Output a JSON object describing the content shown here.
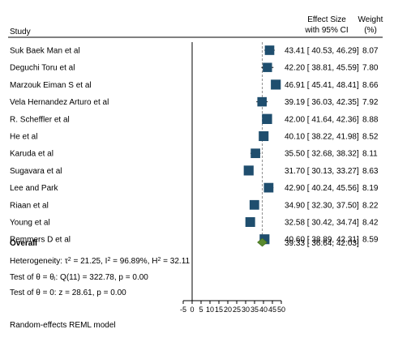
{
  "header": {
    "study": "Study",
    "effect_line1": "Effect Size",
    "effect_line2": "with 95% CI",
    "weight_line1": "Weight",
    "weight_line2": "(%)"
  },
  "colors": {
    "marker": "#1f4e6e",
    "overall": "#5a8a2e",
    "line": "#000000"
  },
  "chart_data": {
    "type": "forest",
    "xlim": [
      -5,
      50
    ],
    "ticks": [
      -5,
      0,
      5,
      10,
      15,
      20,
      25,
      30,
      35,
      40,
      45,
      50
    ],
    "null_line": 0,
    "studies": [
      {
        "name": "Suk Baek Man et al",
        "es": 43.41,
        "lo": 40.53,
        "hi": 46.29,
        "weight": 8.07,
        "label": "43.41 [ 40.53, 46.29]",
        "weight_label": "8.07"
      },
      {
        "name": "Deguchi Toru et al",
        "es": 42.2,
        "lo": 38.81,
        "hi": 45.59,
        "weight": 7.8,
        "label": "42.20 [ 38.81, 45.59]",
        "weight_label": "7.80"
      },
      {
        "name": "Marzouk  Eiman S et al",
        "es": 46.91,
        "lo": 45.41,
        "hi": 48.41,
        "weight": 8.66,
        "label": "46.91 [ 45.41, 48.41]",
        "weight_label": "8.66"
      },
      {
        "name": "Vela Hernandez Arturo et al",
        "es": 39.19,
        "lo": 36.03,
        "hi": 42.35,
        "weight": 7.92,
        "label": "39.19 [ 36.03, 42.35]",
        "weight_label": "7.92"
      },
      {
        "name": "R. Scheffler et al",
        "es": 42.0,
        "lo": 41.64,
        "hi": 42.36,
        "weight": 8.88,
        "label": "42.00 [ 41.64, 42.36]",
        "weight_label": "8.88"
      },
      {
        "name": "He et al",
        "es": 40.1,
        "lo": 38.22,
        "hi": 41.98,
        "weight": 8.52,
        "label": "40.10 [ 38.22, 41.98]",
        "weight_label": "8.52"
      },
      {
        "name": "Karuda et al",
        "es": 35.5,
        "lo": 32.68,
        "hi": 38.32,
        "weight": 8.11,
        "label": "35.50 [ 32.68, 38.32]",
        "weight_label": "8.11"
      },
      {
        "name": "Sugavara et al",
        "es": 31.7,
        "lo": 30.13,
        "hi": 33.27,
        "weight": 8.63,
        "label": "31.70 [ 30.13, 33.27]",
        "weight_label": "8.63"
      },
      {
        "name": "Lee and Park",
        "es": 42.9,
        "lo": 40.24,
        "hi": 45.56,
        "weight": 8.19,
        "label": "42.90 [ 40.24, 45.56]",
        "weight_label": "8.19"
      },
      {
        "name": "Riaan et al",
        "es": 34.9,
        "lo": 32.3,
        "hi": 37.5,
        "weight": 8.22,
        "label": "34.90 [ 32.30, 37.50]",
        "weight_label": "8.22"
      },
      {
        "name": "Young et al",
        "es": 32.58,
        "lo": 30.42,
        "hi": 34.74,
        "weight": 8.42,
        "label": "32.58 [ 30.42, 34.74]",
        "weight_label": "8.42"
      },
      {
        "name": "Remmers D et al",
        "es": 40.6,
        "lo": 38.89,
        "hi": 42.31,
        "weight": 8.59,
        "label": "40.60 [ 38.89, 42.31]",
        "weight_label": "8.59"
      }
    ],
    "overall": {
      "name": "Overall",
      "es": 39.33,
      "lo": 36.64,
      "hi": 42.03,
      "label": "39.33 [ 36.64, 42.03]"
    },
    "heterogeneity": {
      "prefix": "Heterogeneity: τ",
      "tau2": "21.25",
      "i2": "96.89%",
      "h2": "32.11"
    },
    "tests": [
      "Test of θ = θⱼ: Q(11) = 322.78, p = 0.00",
      "Test of θ = 0: z = 28.61, p = 0.00"
    ],
    "model_note": "Random-effects REML model"
  }
}
